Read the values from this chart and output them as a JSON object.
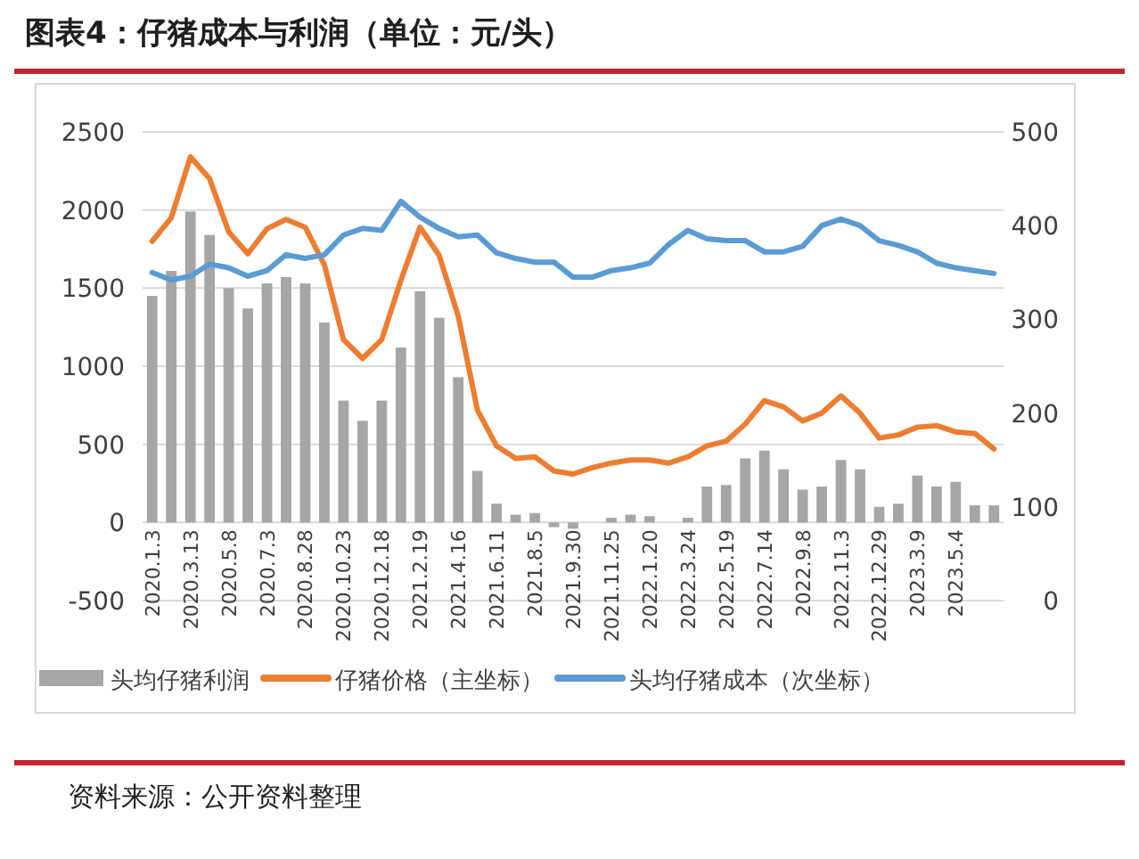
{
  "chart_data": {
    "type": "bar",
    "title": "图表4：仔猪成本与利润（单位：元/头）",
    "categories": [
      "2020.1.3",
      null,
      "2020.3.13",
      null,
      "2020.5.8",
      null,
      "2020.7.3",
      null,
      "2020.8.28",
      null,
      "2020.10.23",
      null,
      "2020.12.18",
      null,
      "2021.2.19",
      null,
      "2021.4.16",
      null,
      "2021.6.11",
      null,
      "2021.8.5",
      null,
      "2021.9.30",
      null,
      "2021.11.25",
      null,
      "2022.1.20",
      null,
      "2022.3.24",
      null,
      "2022.5.19",
      null,
      "2022.7.14",
      null,
      "2022.9.8",
      null,
      "2022.11.3",
      null,
      "2022.12.29",
      null,
      "2023.3.9",
      null,
      "2023.5.4",
      null,
      null
    ],
    "series": [
      {
        "name": "头均仔猪利润",
        "color": "#a6a6a6",
        "values": [
          1450,
          1610,
          1990,
          1840,
          1500,
          1370,
          1530,
          1570,
          1530,
          1280,
          780,
          650,
          780,
          1120,
          1480,
          1310,
          930,
          330,
          120,
          50,
          60,
          -30,
          -40,
          0,
          30,
          50,
          40,
          0,
          30,
          230,
          240,
          410,
          460,
          340,
          210,
          230,
          400,
          340,
          100,
          120,
          300,
          230,
          260,
          110,
          110
        ]
      },
      {
        "name": "仔猪价格（主坐标）",
        "type": "line",
        "color": "#ed7d31",
        "values": [
          1800,
          1950,
          2340,
          2200,
          1860,
          1720,
          1880,
          1940,
          1890,
          1650,
          1170,
          1050,
          1170,
          1550,
          1890,
          1710,
          1320,
          720,
          490,
          410,
          420,
          330,
          310,
          350,
          380,
          400,
          400,
          380,
          420,
          490,
          520,
          630,
          780,
          740,
          650,
          700,
          810,
          700,
          540,
          560,
          610,
          620,
          580,
          570,
          470
        ]
      },
      {
        "name": "头均仔猪成本（次坐标）",
        "type": "line",
        "axis": "y2",
        "color": "#5b9bd5",
        "values": [
          350,
          342,
          346,
          359,
          355,
          346,
          352,
          369,
          365,
          369,
          390,
          397,
          395,
          426,
          409,
          397,
          388,
          390,
          371,
          365,
          361,
          361,
          345,
          345,
          352,
          355,
          360,
          380,
          395,
          386,
          384,
          384,
          372,
          372,
          378,
          400,
          407,
          400,
          384,
          379,
          372,
          360,
          355,
          352,
          349
        ]
      }
    ],
    "ylim": [
      -500,
      2500
    ],
    "yticks": [
      -500,
      0,
      500,
      1000,
      1500,
      2000,
      2500
    ],
    "y2lim": [
      0,
      500
    ],
    "y2ticks": [
      0,
      100,
      200,
      300,
      400,
      500
    ],
    "grid": "y",
    "legend": "bottom",
    "line_style": "solid",
    "marker": "none",
    "annotations": [
      "资料来源：公开资料整理"
    ]
  }
}
